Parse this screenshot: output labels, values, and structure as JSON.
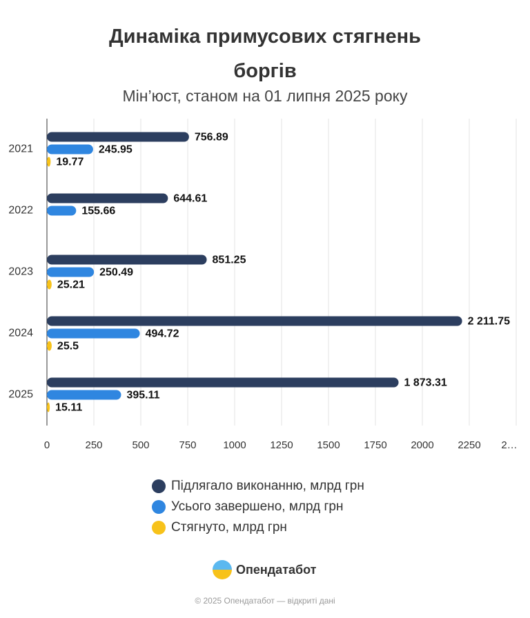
{
  "chart_data": {
    "type": "hbar",
    "title": "Динаміка примусових стягнень боргів",
    "subtitle": "Мін’юст, станом на 01 липня 2025 року",
    "categories": [
      "2021",
      "2022",
      "2023",
      "2024",
      "2025"
    ],
    "series": [
      {
        "name": "Підлягало виконанню, млрд грн",
        "color": "#2c3e5f",
        "values": [
          756.89,
          644.61,
          851.25,
          2211.75,
          1873.31
        ],
        "value_labels": [
          "756.89",
          "644.61",
          "851.25",
          "2 211.75",
          "1 873.31"
        ]
      },
      {
        "name": "Усього завершено, млрд грн",
        "color": "#2f86e0",
        "values": [
          245.95,
          155.66,
          250.49,
          494.72,
          395.11
        ]
      },
      {
        "name": "Стягнуто, млрд грн",
        "color": "#f7c21a",
        "values": [
          19.77,
          null,
          25.21,
          25.5,
          15.11
        ]
      }
    ],
    "xlim": [
      0,
      2500
    ],
    "xticks": [
      0,
      250,
      500,
      750,
      1000,
      1250,
      1500,
      1750,
      2000,
      2250,
      {
        "value": 2500,
        "label": "2…"
      }
    ],
    "grid": true,
    "legend": "bottom"
  },
  "brand": "Опендатабот",
  "footer": "© 2025 Опендатабот — відкриті дані"
}
